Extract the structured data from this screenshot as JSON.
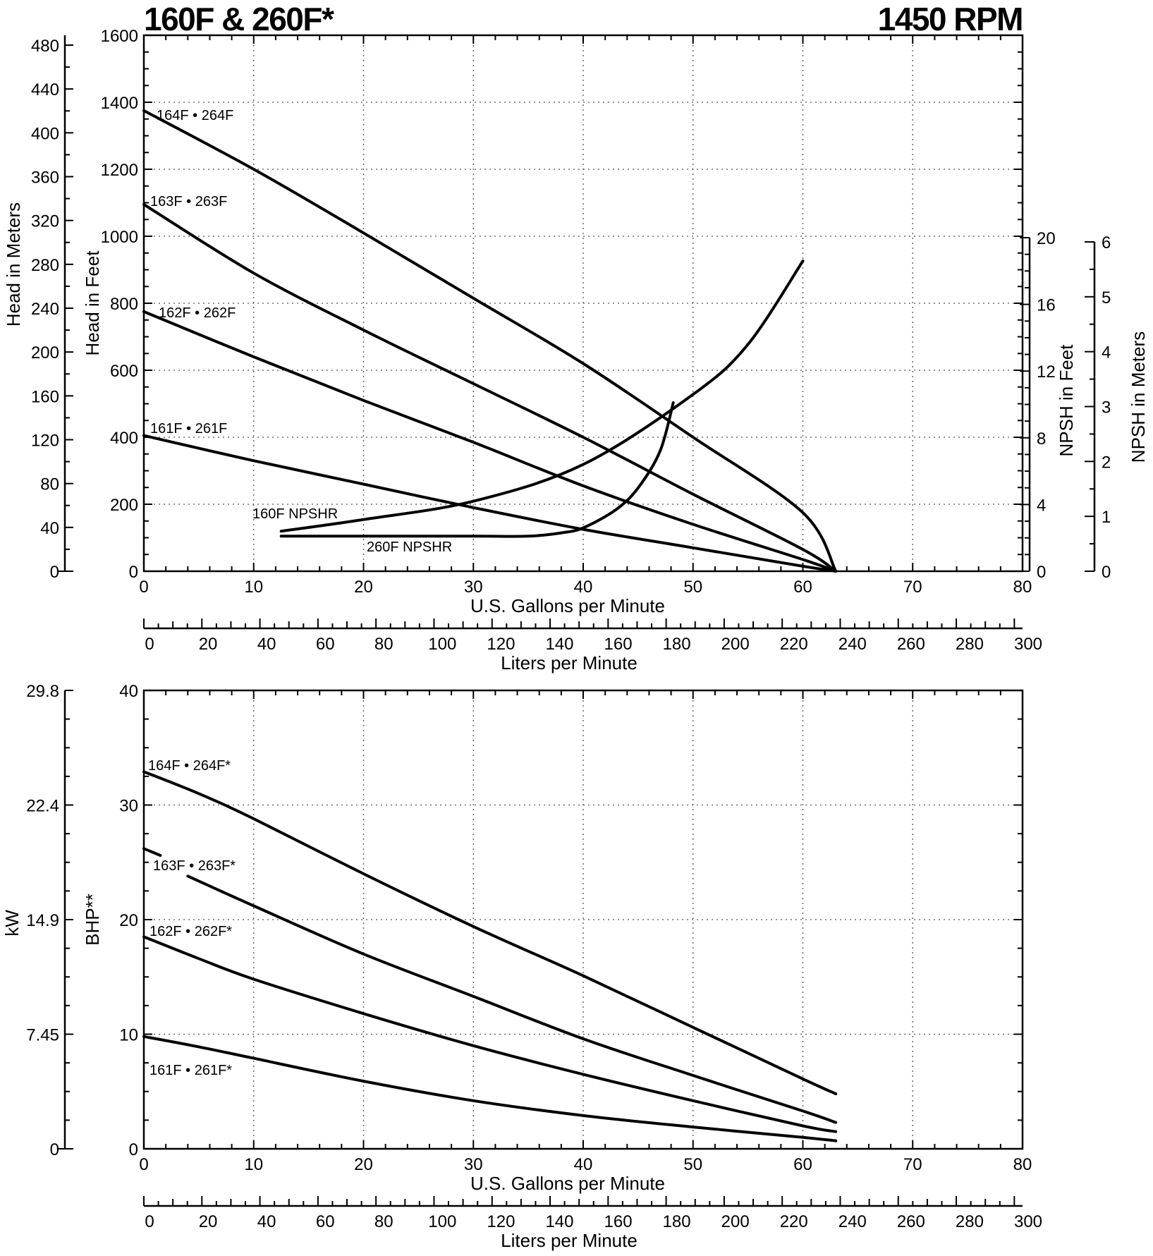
{
  "chart_data": [
    {
      "type": "line",
      "title": "160F & 260F*",
      "title_right": "1450 RPM",
      "xlabel": "U.S. Gallons per Minute",
      "xlim": [
        0,
        80
      ],
      "xticks": [
        "0",
        "10",
        "20",
        "30",
        "40",
        "50",
        "60",
        "70",
        "80"
      ],
      "x2label": "Liters per Minute",
      "x2lim": [
        0,
        300
      ],
      "x2ticks": [
        "0",
        "20",
        "40",
        "60",
        "80",
        "100",
        "120",
        "140",
        "160",
        "180",
        "200",
        "220",
        "240",
        "260",
        "280",
        "300"
      ],
      "ylabel": "Head in Feet",
      "ylim": [
        0,
        1600
      ],
      "yticks": [
        "0",
        "200",
        "400",
        "600",
        "800",
        "1000",
        "1200",
        "1400",
        "1600"
      ],
      "y2label": "Head in Meters",
      "y2lim": [
        0,
        480
      ],
      "y2ticks": [
        "0",
        "40",
        "80",
        "120",
        "160",
        "200",
        "240",
        "280",
        "320",
        "360",
        "400",
        "440",
        "480"
      ],
      "y3label": "NPSH in Feet",
      "y3ticks": [
        "0",
        "4",
        "8",
        "12",
        "16",
        "20"
      ],
      "y4label": "NPSH in Meters",
      "y4ticks": [
        "0",
        "1",
        "2",
        "3",
        "4",
        "5",
        "6"
      ],
      "grid": true,
      "series": [
        {
          "name": "164F • 264F",
          "x": [
            0,
            10,
            20,
            30,
            40,
            50,
            60,
            63
          ],
          "y": [
            1375,
            1200,
            1010,
            815,
            620,
            400,
            175,
            0
          ]
        },
        {
          "name": "163F • 263F",
          "x": [
            0,
            10,
            20,
            30,
            40,
            50,
            60,
            63
          ],
          "y": [
            1095,
            890,
            720,
            560,
            400,
            230,
            65,
            0
          ]
        },
        {
          "name": "162F • 262F",
          "x": [
            0,
            10,
            20,
            30,
            40,
            50,
            60,
            63
          ],
          "y": [
            775,
            640,
            510,
            385,
            255,
            140,
            35,
            0
          ]
        },
        {
          "name": "161F • 261F",
          "x": [
            0,
            10,
            20,
            30,
            40,
            50,
            60,
            63
          ],
          "y": [
            405,
            330,
            260,
            190,
            125,
            70,
            15,
            0
          ]
        },
        {
          "name": "160F NPSHR",
          "axis": "NPSH in Feet",
          "x": [
            12.5,
            20,
            30,
            40,
            50,
            55,
            60
          ],
          "y": [
            2.4,
            3.1,
            4.2,
            6.4,
            10.6,
            13.6,
            18.6
          ]
        },
        {
          "name": "260F NPSHR",
          "axis": "NPSH in Feet",
          "x": [
            12.5,
            20,
            30,
            35,
            38,
            40,
            43,
            45,
            47,
            48.2
          ],
          "y": [
            2.1,
            2.1,
            2.1,
            2.1,
            2.3,
            2.6,
            3.7,
            5.0,
            7.2,
            10.1
          ]
        }
      ]
    },
    {
      "type": "line",
      "xlabel": "U.S. Gallons per Minute",
      "xlim": [
        0,
        80
      ],
      "xticks": [
        "0",
        "10",
        "20",
        "30",
        "40",
        "50",
        "60",
        "70",
        "80"
      ],
      "x2label": "Liters per Minute",
      "x2lim": [
        0,
        300
      ],
      "x2ticks": [
        "0",
        "20",
        "40",
        "60",
        "80",
        "100",
        "120",
        "140",
        "160",
        "180",
        "200",
        "220",
        "240",
        "260",
        "280",
        "300"
      ],
      "ylabel": "BHP**",
      "ylim": [
        0,
        40
      ],
      "yticks": [
        "0",
        "10",
        "20",
        "30",
        "40"
      ],
      "y2label": "kW",
      "y2ticks": [
        "0",
        "7.45",
        "14.9",
        "22.4",
        "29.8"
      ],
      "grid": true,
      "series": [
        {
          "name": "164F • 264F*",
          "x": [
            0,
            5,
            10,
            20,
            30,
            40,
            50,
            60,
            63
          ],
          "y": [
            32.9,
            31.0,
            28.8,
            24.0,
            19.4,
            15.1,
            10.6,
            6.1,
            4.8
          ]
        },
        {
          "name": "163F • 263F*",
          "x": [
            0,
            1.5,
            4,
            10,
            20,
            30,
            40,
            50,
            60,
            63
          ],
          "y": [
            26.2,
            25.6,
            23.8,
            21.2,
            17.0,
            13.3,
            9.6,
            6.4,
            3.3,
            2.3
          ]
        },
        {
          "name": "162F • 262F*",
          "x": [
            0,
            5,
            10,
            20,
            30,
            40,
            50,
            60,
            63
          ],
          "y": [
            18.5,
            16.6,
            14.8,
            11.8,
            9.0,
            6.5,
            4.2,
            2.0,
            1.5
          ]
        },
        {
          "name": "161F • 261F*",
          "x": [
            0,
            5,
            10,
            20,
            30,
            40,
            50,
            60,
            63
          ],
          "y": [
            9.8,
            8.9,
            7.9,
            5.9,
            4.2,
            2.9,
            1.9,
            1.0,
            0.7
          ]
        }
      ]
    }
  ]
}
